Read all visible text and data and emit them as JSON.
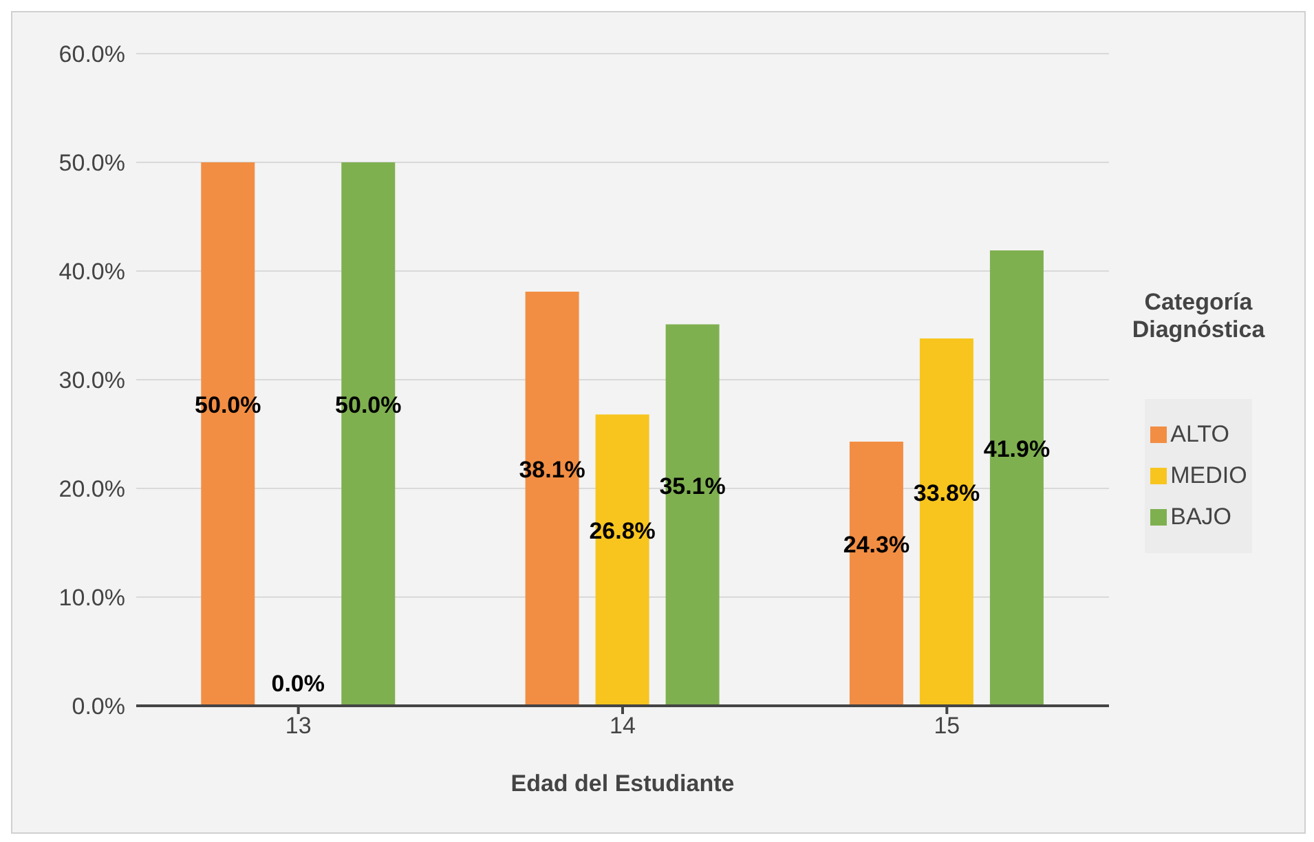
{
  "chart_data": {
    "type": "bar",
    "xlabel": "Edad del Estudiante",
    "legend_title": "Categoría Diagnóstica",
    "categories": [
      "13",
      "14",
      "15"
    ],
    "series": [
      {
        "name": "ALTO",
        "color": "#f28e43",
        "values": [
          50.0,
          38.1,
          24.3
        ],
        "value_labels": [
          "50.0%",
          "38.1%",
          "24.3%"
        ]
      },
      {
        "name": "MEDIO",
        "color": "#f7c51e",
        "values": [
          0.0,
          26.8,
          33.8
        ],
        "value_labels": [
          "0.0%",
          "26.8%",
          "33.8%"
        ]
      },
      {
        "name": "BAJO",
        "color": "#7fb050",
        "values": [
          50.0,
          35.1,
          41.9
        ],
        "value_labels": [
          "50.0%",
          "35.1%",
          "41.9%"
        ]
      }
    ],
    "ylim": [
      0,
      60
    ],
    "yticks": [
      {
        "value": 0,
        "label": "0.0%"
      },
      {
        "value": 10,
        "label": "10.0%"
      },
      {
        "value": 20,
        "label": "20.0%"
      },
      {
        "value": 30,
        "label": "30.0%"
      },
      {
        "value": 40,
        "label": "40.0%"
      },
      {
        "value": 50,
        "label": "50.0%"
      },
      {
        "value": 60,
        "label": "60.0%"
      }
    ],
    "grid": "y",
    "legend": "right"
  }
}
